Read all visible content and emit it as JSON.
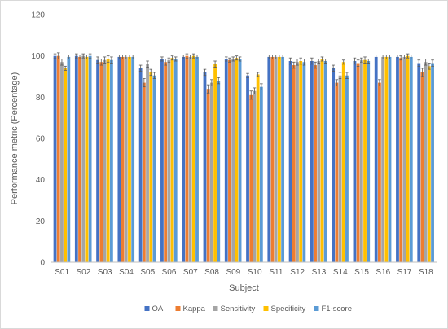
{
  "chart_data": {
    "type": "bar",
    "title": "",
    "xlabel": "Subject",
    "ylabel": "Performance metric (Percentage)",
    "ylim": [
      0,
      120
    ],
    "yticks": [
      "0",
      "20",
      "40",
      "60",
      "80",
      "100",
      "120"
    ],
    "grid": false,
    "legend_position": "bottom",
    "error_bars": true,
    "categories": [
      "S01",
      "S02",
      "S03",
      "S04",
      "S05",
      "S06",
      "S07",
      "S08",
      "S09",
      "S10",
      "S11",
      "S12",
      "S13",
      "S14",
      "S15",
      "S16",
      "S17",
      "S18"
    ],
    "series": [
      {
        "name": "OA",
        "color": "#4472C4",
        "values": [
          100,
          100,
          98,
          99.5,
          94,
          98.5,
          99.5,
          92,
          98.5,
          90.5,
          99.5,
          97.5,
          97.5,
          94,
          97.5,
          99.5,
          99.5,
          96.5
        ],
        "errors": [
          1,
          1,
          1.5,
          1,
          1.5,
          1,
          1,
          1.5,
          1,
          1,
          1,
          1.5,
          1.5,
          1.5,
          1.5,
          1,
          1,
          1.5
        ]
      },
      {
        "name": "Kappa",
        "color": "#ED7D31",
        "values": [
          100,
          99.5,
          97,
          99.5,
          87,
          97,
          100,
          84,
          98,
          81,
          99.5,
          95.5,
          95.5,
          87,
          96.5,
          87,
          99,
          92
        ],
        "errors": [
          1.5,
          1,
          1.5,
          1,
          2,
          1.5,
          1,
          2,
          1,
          2,
          1,
          1.5,
          1.5,
          1.5,
          1.5,
          1.5,
          1,
          2
        ]
      },
      {
        "name": "Sensitivity",
        "color": "#A5A5A5",
        "values": [
          97,
          100,
          98,
          99.5,
          96,
          98,
          99.5,
          87,
          98.5,
          83,
          99.5,
          97,
          97.5,
          90.5,
          98,
          99.5,
          99.5,
          97
        ],
        "errors": [
          1.5,
          1,
          1.5,
          1,
          1.5,
          1,
          1,
          1.5,
          1,
          1.5,
          1,
          1.5,
          1,
          1.5,
          1,
          1,
          1,
          1.5
        ]
      },
      {
        "name": "Specificity",
        "color": "#FFC000",
        "values": [
          94,
          99.5,
          98.5,
          99.5,
          92,
          99,
          100,
          96,
          99,
          91,
          99.5,
          97.5,
          98.5,
          97,
          98,
          99.5,
          100,
          95
        ],
        "errors": [
          1,
          1,
          1.5,
          1,
          1.5,
          1,
          1,
          1.5,
          1,
          1,
          1,
          1.5,
          1,
          1,
          1.5,
          1,
          1,
          1.5
        ]
      },
      {
        "name": "F1-score",
        "color": "#5B9BD5",
        "values": [
          99.5,
          100,
          98,
          99.5,
          90.5,
          98.5,
          99.5,
          88,
          98.5,
          85,
          99.5,
          97,
          97.5,
          90.5,
          97.5,
          99.5,
          99.5,
          96.5
        ],
        "errors": [
          1,
          1,
          1.5,
          1,
          1.5,
          1,
          1,
          1.5,
          1,
          1.5,
          1,
          1.5,
          1,
          1.5,
          1,
          1,
          1,
          1.5
        ]
      }
    ]
  }
}
